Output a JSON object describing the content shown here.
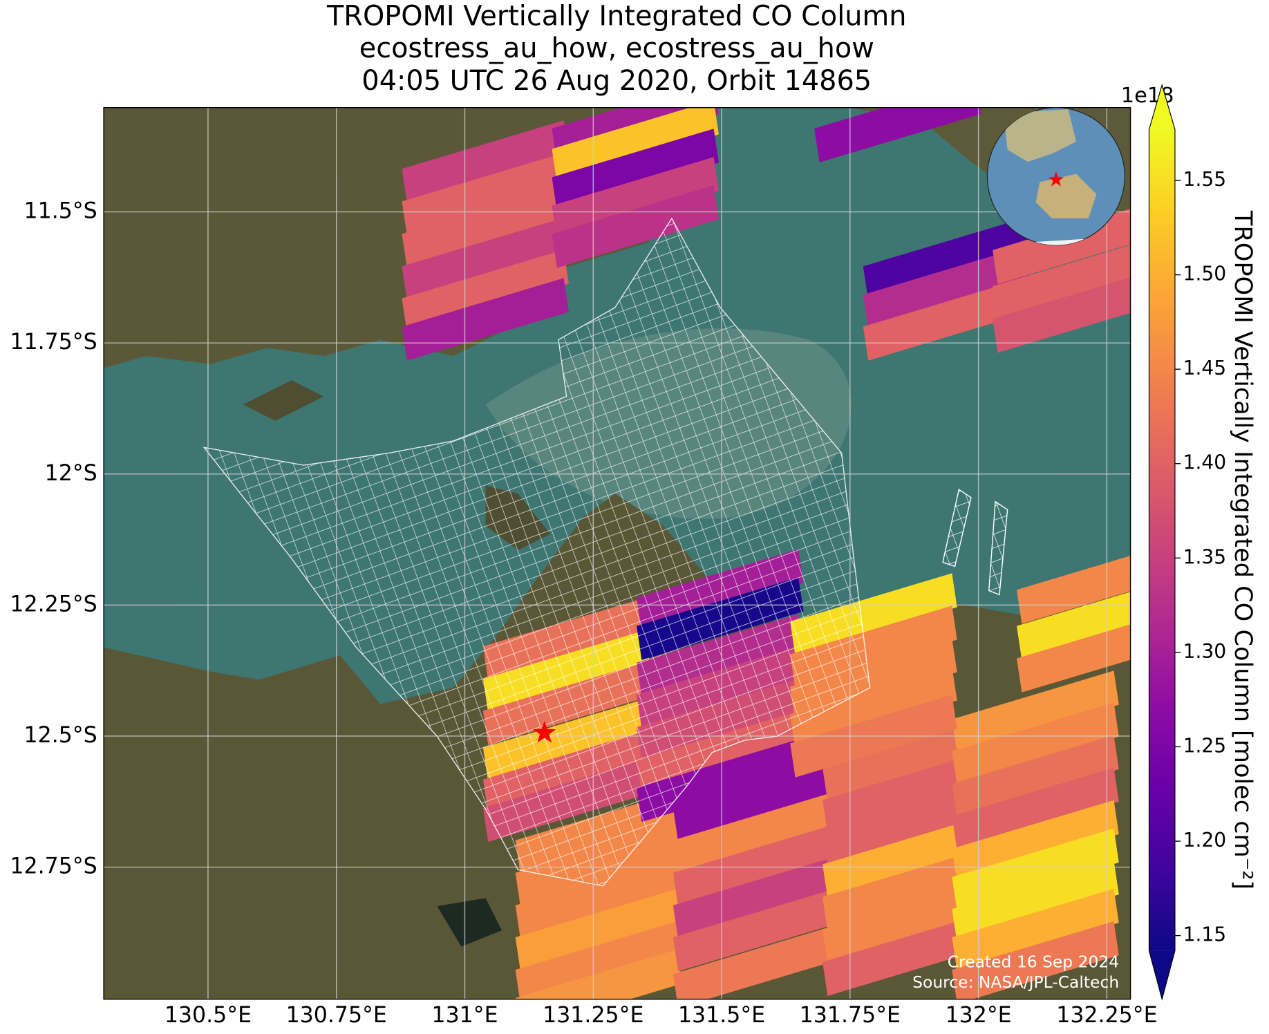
{
  "chart_data": {
    "type": "map",
    "title": [
      "TROPOMI Vertically Integrated CO Column",
      "ecostress_au_how, ecostress_au_how",
      "04:05 UTC 26 Aug 2020, Orbit 14865"
    ],
    "xlim": [
      130.297,
      132.296
    ],
    "ylim": [
      -13.002,
      -11.301
    ],
    "xticks": [
      {
        "value": 130.5,
        "label": "130.5°E"
      },
      {
        "value": 130.75,
        "label": "130.75°E"
      },
      {
        "value": 131,
        "label": "131°E"
      },
      {
        "value": 131.25,
        "label": "131.25°E"
      },
      {
        "value": 131.5,
        "label": "131.5°E"
      },
      {
        "value": 131.75,
        "label": "131.75°E"
      },
      {
        "value": 132,
        "label": "132°E"
      },
      {
        "value": 132.25,
        "label": "132.25°E"
      }
    ],
    "yticks": [
      {
        "value": -11.5,
        "label": "11.5°S"
      },
      {
        "value": -11.75,
        "label": "11.75°S"
      },
      {
        "value": -12,
        "label": "12°S"
      },
      {
        "value": -12.25,
        "label": "12.25°S"
      },
      {
        "value": -12.5,
        "label": "12.5°S"
      },
      {
        "value": -12.75,
        "label": "12.75°S"
      }
    ],
    "grid": true,
    "colormap": "plasma",
    "extend": "both",
    "clim": [
      1.142,
      1.577
    ],
    "cticks": [
      1.15,
      {
        "value": 1.2,
        "label": "1.20"
      },
      1.25,
      {
        "value": 1.3,
        "label": "1.30"
      },
      1.35,
      {
        "value": 1.4,
        "label": "1.40"
      },
      1.45,
      {
        "value": 1.5,
        "label": "1.50"
      },
      1.55
    ],
    "colorbar_label": "TROPOMI Vertically Integrated CO Column [molec cm⁻²]",
    "offset_label": "1e18",
    "site": {
      "lon": 131.155,
      "lat": -12.494,
      "color": "#ff0000"
    },
    "credits": [
      "Created 16 Sep 2024",
      "Source: NASA/JPL-Caltech"
    ],
    "pixels": [
      {
        "lon": 131.04,
        "lat": -11.404,
        "value": 1.35
      },
      {
        "lon": 131.04,
        "lat": -11.466,
        "value": 1.4
      },
      {
        "lon": 131.04,
        "lat": -11.528,
        "value": 1.4
      },
      {
        "lon": 131.04,
        "lat": -11.59,
        "value": 1.35
      },
      {
        "lon": 131.04,
        "lat": -11.651,
        "value": 1.4
      },
      {
        "lon": 131.04,
        "lat": -11.705,
        "value": 1.3
      },
      {
        "lon": 131.332,
        "lat": -11.327,
        "value": 1.3
      },
      {
        "lon": 131.332,
        "lat": -11.366,
        "value": 1.52
      },
      {
        "lon": 131.332,
        "lat": -11.42,
        "value": 1.25
      },
      {
        "lon": 131.332,
        "lat": -11.474,
        "value": 1.35
      },
      {
        "lon": 131.332,
        "lat": -11.528,
        "value": 1.33
      },
      {
        "lon": 131.843,
        "lat": -11.327,
        "value": 1.27
      },
      {
        "lon": 131.938,
        "lat": -11.59,
        "value": 1.2
      },
      {
        "lon": 131.938,
        "lat": -11.644,
        "value": 1.32
      },
      {
        "lon": 131.938,
        "lat": -11.705,
        "value": 1.4
      },
      {
        "lon": 132.19,
        "lat": -11.559,
        "value": 1.4
      },
      {
        "lon": 132.19,
        "lat": -11.628,
        "value": 1.4
      },
      {
        "lon": 132.19,
        "lat": -11.69,
        "value": 1.38
      },
      {
        "lon": 131.261,
        "lat": -12.685,
        "value": 1.45
      },
      {
        "lon": 131.261,
        "lat": -12.747,
        "value": 1.45
      },
      {
        "lon": 131.261,
        "lat": -12.809,
        "value": 1.45
      },
      {
        "lon": 131.261,
        "lat": -12.87,
        "value": 1.48
      },
      {
        "lon": 131.261,
        "lat": -12.932,
        "value": 1.45
      },
      {
        "lon": 131.261,
        "lat": -12.986,
        "value": 1.47
      },
      {
        "lon": 131.568,
        "lat": -12.623,
        "value": 1.27
      },
      {
        "lon": 131.568,
        "lat": -12.685,
        "value": 1.45
      },
      {
        "lon": 131.568,
        "lat": -12.747,
        "value": 1.4
      },
      {
        "lon": 131.568,
        "lat": -12.809,
        "value": 1.35
      },
      {
        "lon": 131.568,
        "lat": -12.87,
        "value": 1.4
      },
      {
        "lon": 131.568,
        "lat": -12.94,
        "value": 1.43
      },
      {
        "lon": 131.859,
        "lat": -12.546,
        "value": 1.42
      },
      {
        "lon": 131.859,
        "lat": -12.608,
        "value": 1.4
      },
      {
        "lon": 131.859,
        "lat": -12.67,
        "value": 1.4
      },
      {
        "lon": 131.859,
        "lat": -12.731,
        "value": 1.5
      },
      {
        "lon": 131.859,
        "lat": -12.793,
        "value": 1.45
      },
      {
        "lon": 131.859,
        "lat": -12.855,
        "value": 1.45
      },
      {
        "lon": 131.859,
        "lat": -12.917,
        "value": 1.4
      },
      {
        "lon": 132.111,
        "lat": -12.454,
        "value": 1.47
      },
      {
        "lon": 132.111,
        "lat": -12.515,
        "value": 1.45
      },
      {
        "lon": 132.111,
        "lat": -12.577,
        "value": 1.42
      },
      {
        "lon": 132.111,
        "lat": -12.639,
        "value": 1.4
      },
      {
        "lon": 132.111,
        "lat": -12.701,
        "value": 1.5
      },
      {
        "lon": 132.111,
        "lat": -12.755,
        "value": 1.55
      },
      {
        "lon": 132.111,
        "lat": -12.816,
        "value": 1.55
      },
      {
        "lon": 132.111,
        "lat": -12.87,
        "value": 1.5
      },
      {
        "lon": 132.111,
        "lat": -12.932,
        "value": 1.43
      },
      {
        "lon": 131.198,
        "lat": -12.315,
        "value": 1.42
      },
      {
        "lon": 131.198,
        "lat": -12.377,
        "value": 1.55
      },
      {
        "lon": 131.198,
        "lat": -12.438,
        "value": 1.42
      },
      {
        "lon": 131.198,
        "lat": -12.508,
        "value": 1.52
      },
      {
        "lon": 131.198,
        "lat": -12.569,
        "value": 1.4
      },
      {
        "lon": 131.198,
        "lat": -12.623,
        "value": 1.37
      },
      {
        "lon": 131.497,
        "lat": -12.222,
        "value": 1.3
      },
      {
        "lon": 131.497,
        "lat": -12.276,
        "value": 1.15
      },
      {
        "lon": 131.497,
        "lat": -12.346,
        "value": 1.32
      },
      {
        "lon": 131.497,
        "lat": -12.407,
        "value": 1.35
      },
      {
        "lon": 131.497,
        "lat": -12.469,
        "value": 1.37
      },
      {
        "lon": 131.497,
        "lat": -12.531,
        "value": 1.4
      },
      {
        "lon": 131.497,
        "lat": -12.585,
        "value": 1.27
      },
      {
        "lon": 131.796,
        "lat": -12.268,
        "value": 1.55
      },
      {
        "lon": 131.796,
        "lat": -12.33,
        "value": 1.45
      },
      {
        "lon": 131.796,
        "lat": -12.392,
        "value": 1.45
      },
      {
        "lon": 131.796,
        "lat": -12.446,
        "value": 1.45
      },
      {
        "lon": 131.796,
        "lat": -12.5,
        "value": 1.43
      },
      {
        "lon": 132.237,
        "lat": -12.207,
        "value": 1.45
      },
      {
        "lon": 132.237,
        "lat": -12.276,
        "value": 1.55
      },
      {
        "lon": 132.237,
        "lat": -12.338,
        "value": 1.45
      }
    ]
  }
}
